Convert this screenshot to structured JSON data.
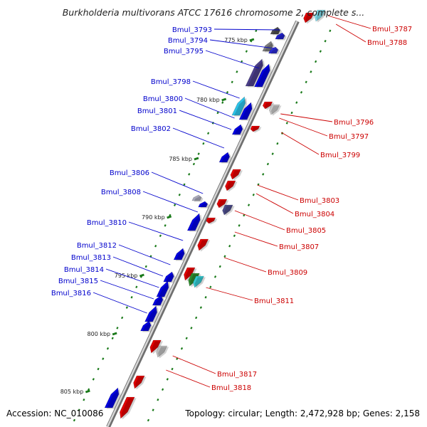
{
  "title": "Burkholderia multivorans ATCC 17616 chromosome 2, complete s...",
  "accession": "Accession: NC_010086",
  "topology": "Topology: circular; Length: 2,472,928 bp; Genes: 2,158",
  "colors": {
    "forward": "#e00000",
    "reverse": "#0000e0",
    "backbone": "#9a9a9a",
    "tick": "#1a7a1a",
    "label_forward": "#cc0000",
    "label_reverse": "#0000cc"
  },
  "kbp_markers": [
    "775 kbp",
    "780 kbp",
    "785 kbp",
    "790 kbp",
    "795 kbp",
    "800 kbp",
    "805 kbp"
  ],
  "genes_left": [
    {
      "name": "Bmul_3793",
      "strand": "reverse"
    },
    {
      "name": "Bmul_3794",
      "strand": "reverse"
    },
    {
      "name": "Bmul_3795",
      "strand": "reverse"
    },
    {
      "name": "Bmul_3798",
      "strand": "reverse"
    },
    {
      "name": "Bmul_3800",
      "strand": "reverse"
    },
    {
      "name": "Bmul_3801",
      "strand": "reverse"
    },
    {
      "name": "Bmul_3802",
      "strand": "reverse"
    },
    {
      "name": "Bmul_3806",
      "strand": "reverse"
    },
    {
      "name": "Bmul_3808",
      "strand": "reverse"
    },
    {
      "name": "Bmul_3810",
      "strand": "reverse"
    },
    {
      "name": "Bmul_3812",
      "strand": "reverse"
    },
    {
      "name": "Bmul_3813",
      "strand": "reverse"
    },
    {
      "name": "Bmul_3814",
      "strand": "reverse"
    },
    {
      "name": "Bmul_3815",
      "strand": "reverse"
    },
    {
      "name": "Bmul_3816",
      "strand": "reverse"
    }
  ],
  "genes_right": [
    {
      "name": "Bmul_3787",
      "strand": "forward"
    },
    {
      "name": "Bmul_3788",
      "strand": "forward"
    },
    {
      "name": "Bmul_3796",
      "strand": "forward"
    },
    {
      "name": "Bmul_3797",
      "strand": "forward"
    },
    {
      "name": "Bmul_3799",
      "strand": "forward"
    },
    {
      "name": "Bmul_3803",
      "strand": "forward"
    },
    {
      "name": "Bmul_3804",
      "strand": "forward"
    },
    {
      "name": "Bmul_3805",
      "strand": "forward"
    },
    {
      "name": "Bmul_3807",
      "strand": "forward"
    },
    {
      "name": "Bmul_3809",
      "strand": "forward"
    },
    {
      "name": "Bmul_3811",
      "strand": "forward"
    },
    {
      "name": "Bmul_3817",
      "strand": "forward"
    },
    {
      "name": "Bmul_3818",
      "strand": "forward"
    }
  ]
}
